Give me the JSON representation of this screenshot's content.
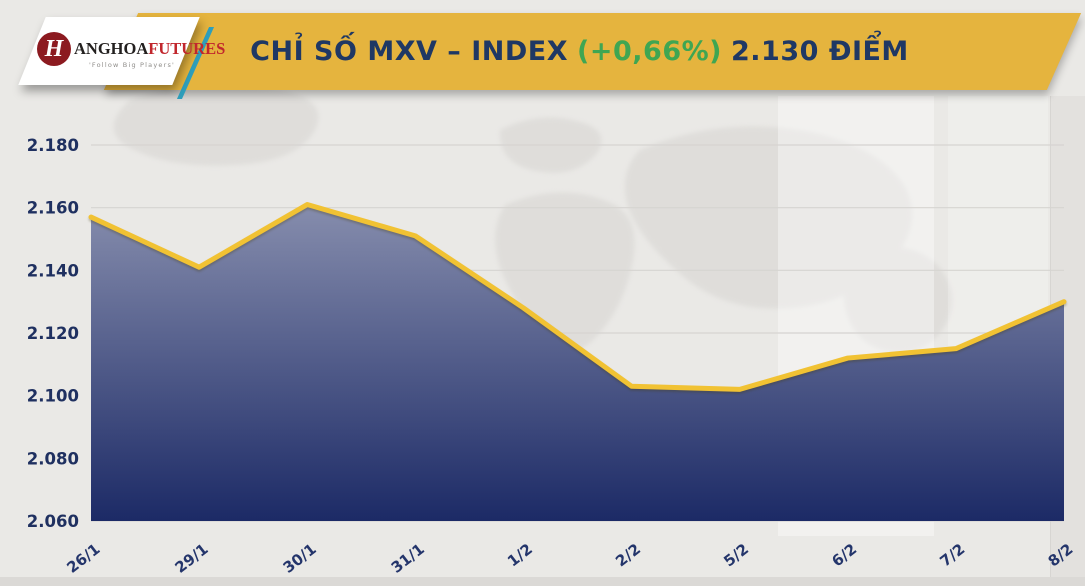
{
  "header": {
    "logo": {
      "monogram": "H",
      "brand_primary": "ANGHOA",
      "brand_accent": "FUTURES",
      "tagline": "'Follow Big Players'"
    },
    "title": {
      "label": "CHỈ SỐ MXV – INDEX",
      "change": "(+0,66%)",
      "value": "2.130 ĐIỂM"
    }
  },
  "colors": {
    "banner_yellow": "#E5B43E",
    "line_yellow": "#F1C233",
    "title_navy": "#1F3864",
    "change_green": "#3FA652",
    "area_gradient_top": "#868DAD",
    "area_gradient_bottom": "#1C2A66",
    "logo_maroon": "#8C1A20",
    "logo_red": "#C1272D",
    "teal_accent": "#2E9FBC",
    "background_gray": "#EAE9E6",
    "gridline_gray": "#D6D4D1"
  },
  "chart_data": {
    "type": "area",
    "title": "CHỈ SỐ MXV – INDEX (+0,66%) 2.130 ĐIỂM",
    "series_name": "MXV-Index",
    "categories": [
      "26/1",
      "29/1",
      "30/1",
      "31/1",
      "1/2",
      "2/2",
      "5/2",
      "6/2",
      "7/2",
      "8/2"
    ],
    "values": [
      2.157,
      2.141,
      2.161,
      2.151,
      2.128,
      2.103,
      2.102,
      2.112,
      2.115,
      2.13
    ],
    "y_ticks": [
      "2.180",
      "2.160",
      "2.140",
      "2.120",
      "2.100",
      "2.080",
      "2.060"
    ],
    "ylim": [
      2.06,
      2.18
    ],
    "xlabel": "",
    "ylabel": "",
    "grid": true,
    "legend": false,
    "change_percent": "+0,66%",
    "latest_value": "2.130"
  }
}
